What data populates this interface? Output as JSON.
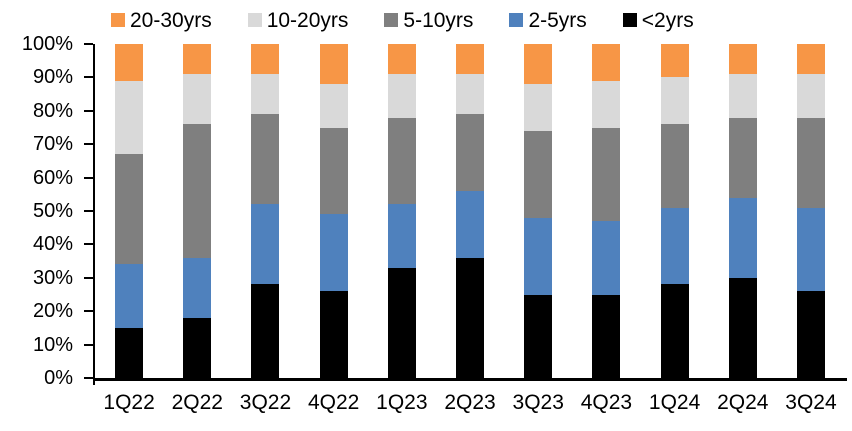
{
  "colors": {
    "background": "#FFFFFF",
    "axis": "#000000",
    "text": "#000000"
  },
  "chart_data": {
    "type": "bar",
    "variant": "100-percent-stacked-column",
    "title": "",
    "xlabel": "",
    "ylabel": "",
    "grid": false,
    "categories": [
      "1Q22",
      "2Q22",
      "3Q22",
      "4Q22",
      "1Q23",
      "2Q23",
      "3Q23",
      "4Q23",
      "1Q24",
      "2Q24",
      "3Q24"
    ],
    "series": [
      {
        "name": "<2yrs",
        "color": "#000000",
        "values": [
          15,
          18,
          28,
          26,
          33,
          36,
          25,
          25,
          28,
          30,
          26
        ]
      },
      {
        "name": "2-5yrs",
        "color": "#4F81BD",
        "values": [
          19,
          18,
          24,
          23,
          19,
          20,
          23,
          22,
          23,
          24,
          25
        ]
      },
      {
        "name": "5-10yrs",
        "color": "#7F7F7F",
        "values": [
          33,
          40,
          27,
          26,
          26,
          23,
          26,
          28,
          25,
          24,
          27
        ]
      },
      {
        "name": "10-20yrs",
        "color": "#D9D9D9",
        "values": [
          22,
          15,
          12,
          13,
          13,
          12,
          14,
          14,
          14,
          13,
          13
        ]
      },
      {
        "name": "20-30yrs",
        "color": "#F79646",
        "values": [
          11,
          9,
          9,
          12,
          9,
          9,
          12,
          11,
          10,
          9,
          9
        ]
      }
    ],
    "stack_order_bottom_to_top": [
      "<2yrs",
      "2-5yrs",
      "5-10yrs",
      "10-20yrs",
      "20-30yrs"
    ],
    "legend": {
      "position": "top",
      "order": [
        "20-30yrs",
        "10-20yrs",
        "5-10yrs",
        "2-5yrs",
        "<2yrs"
      ]
    },
    "y_axis": {
      "min": 0,
      "max": 100,
      "tick_step": 10,
      "unit": "%",
      "tick_labels": [
        "0%",
        "10%",
        "20%",
        "30%",
        "40%",
        "50%",
        "60%",
        "70%",
        "80%",
        "90%",
        "100%"
      ]
    }
  }
}
